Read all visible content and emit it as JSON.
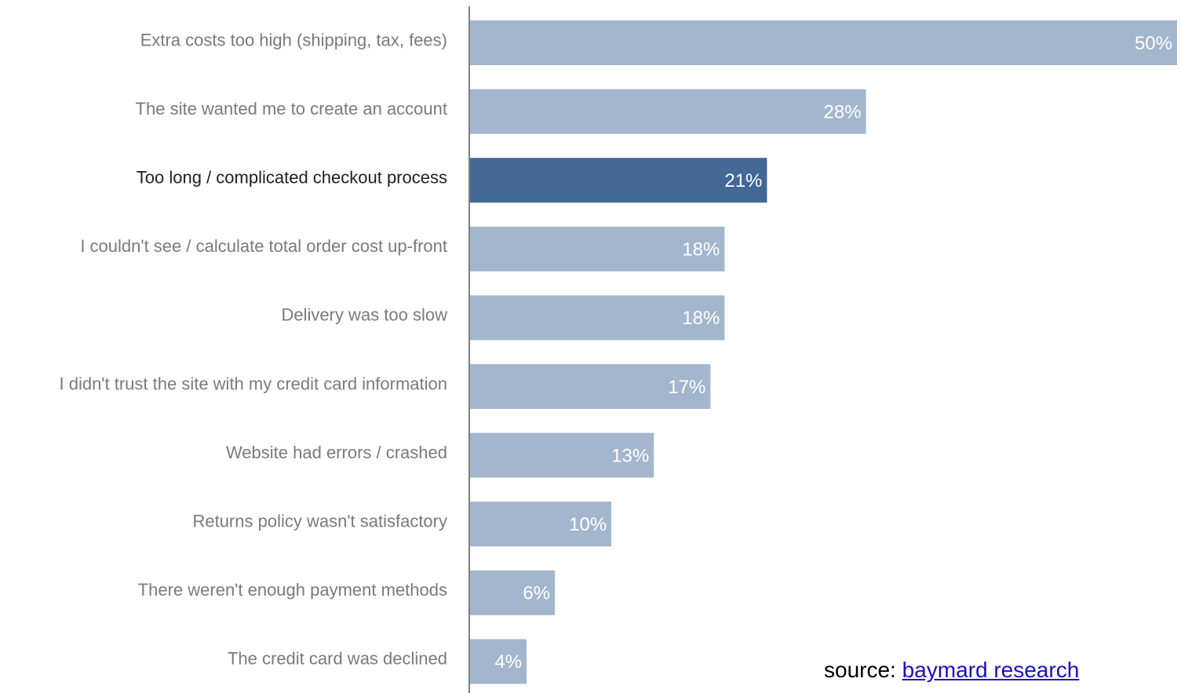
{
  "chart_data": {
    "type": "bar",
    "orientation": "horizontal",
    "categories": [
      "Extra costs too high (shipping, tax, fees)",
      "The site wanted me to create an account",
      "Too long / complicated checkout process",
      "I couldn't see / calculate total order cost up-front",
      "Delivery was too slow",
      "I didn't trust the site with my credit card information",
      "Website had errors / crashed",
      "Returns policy wasn't satisfactory",
      "There weren't enough payment methods",
      "The credit card was declined"
    ],
    "values": [
      50,
      28,
      21,
      18,
      18,
      17,
      13,
      10,
      6,
      4
    ],
    "value_labels": [
      "50%",
      "28%",
      "21%",
      "18%",
      "18%",
      "17%",
      "13%",
      "10%",
      "6%",
      "4%"
    ],
    "highlight_index": 2,
    "xlim": [
      0,
      50
    ],
    "grid": false,
    "colors": {
      "bar": "#a3b6cd",
      "bar_highlight": "#426896",
      "axis": "#555555"
    }
  },
  "source": {
    "prefix": "source: ",
    "link_text": "baymard research"
  }
}
